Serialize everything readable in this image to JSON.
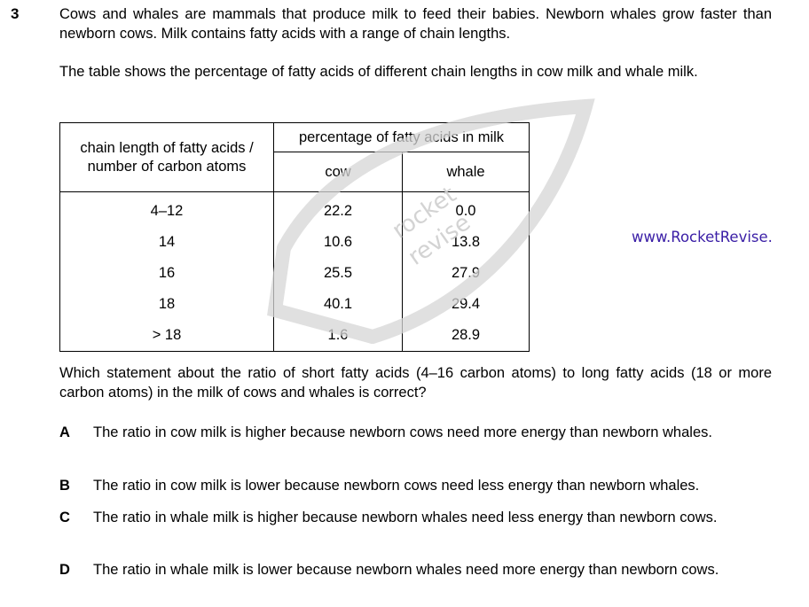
{
  "question": {
    "number": "3",
    "intro": "Cows and whales are mammals that produce milk to feed their babies. Newborn whales grow faster than newborn cows. Milk contains fatty acids with a range of chain lengths.",
    "table_intro": "The table shows the percentage of fatty acids of different chain lengths in cow milk and whale milk.",
    "prompt": "Which statement about the ratio of short fatty acids (4–16 carbon atoms) to long fatty acids (18 or more carbon atoms) in the milk of cows and whales is correct?"
  },
  "table": {
    "header_chain": "chain length of fatty acids / number of carbon atoms",
    "header_percentage": "percentage of fatty acids in milk",
    "header_cow": "cow",
    "header_whale": "whale",
    "rows": [
      {
        "chain": "4–12",
        "cow": "22.2",
        "whale": "0.0"
      },
      {
        "chain": "14",
        "cow": "10.6",
        "whale": "13.8"
      },
      {
        "chain": "16",
        "cow": "25.5",
        "whale": "27.9"
      },
      {
        "chain": "18",
        "cow": "40.1",
        "whale": "29.4"
      },
      {
        "chain": "> 18",
        "cow": "1.6",
        "whale": "28.9"
      }
    ]
  },
  "options": [
    {
      "letter": "A",
      "text": "The ratio in cow milk is higher because newborn cows need more energy than newborn whales."
    },
    {
      "letter": "B",
      "text": "The ratio in cow milk is lower because newborn cows need less energy than newborn whales."
    },
    {
      "letter": "C",
      "text": "The ratio in whale milk is higher because newborn whales need less energy than newborn cows."
    },
    {
      "letter": "D",
      "text": "The ratio in whale milk is lower because newborn whales need more energy than newborn cows."
    }
  ],
  "watermark": {
    "line1": "rocket",
    "line2": "revise"
  },
  "footer_url": "www.RocketRevise.",
  "colors": {
    "url": "#3a1ea6",
    "watermark": "#d6d6d6"
  }
}
